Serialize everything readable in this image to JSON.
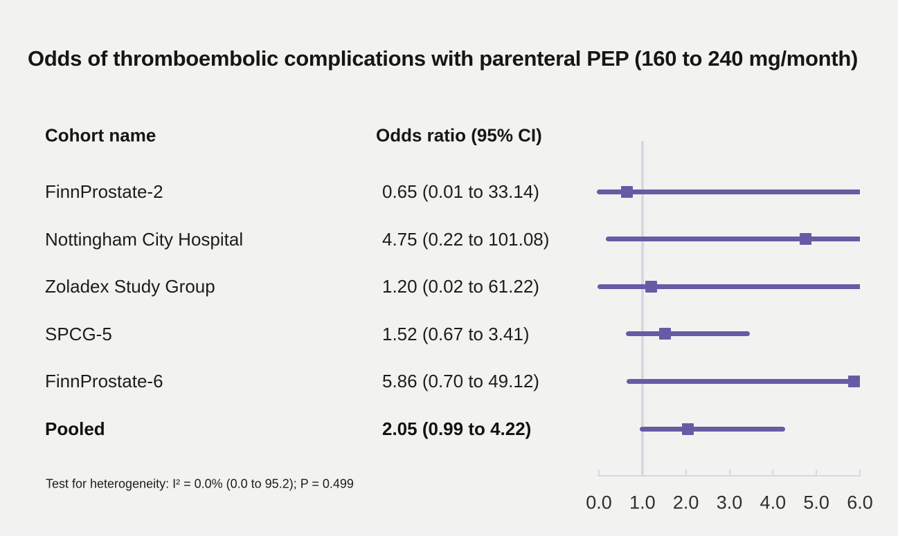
{
  "figure": {
    "title": "Odds of thromboembolic complications with parenteral PEP (160 to 240 mg/month)"
  },
  "table": {
    "col1_header": "Cohort name",
    "col2_header": "Odds ratio (95% CI)"
  },
  "footer": {
    "heterogeneity": "Test for heterogeneity: I² = 0.0% (0.0 to 95.2); P = 0.499"
  },
  "chart_data": {
    "type": "forest",
    "title": "Odds of thromboembolic complications with parenteral PEP (160 to 240 mg/month)",
    "xlabel": "",
    "ylabel": "",
    "axis": {
      "min": 0.0,
      "max": 6.0,
      "tick_values": [
        0.0,
        1.0,
        2.0,
        3.0,
        4.0,
        5.0,
        6.0
      ],
      "ticks": [
        "0.0",
        "1.0",
        "2.0",
        "3.0",
        "4.0",
        "5.0",
        "6.0"
      ],
      "reference_line": 1.0
    },
    "rows": [
      {
        "cohort": "FinnProstate-2",
        "label": "0.65 (0.01 to 33.14)",
        "or": 0.65,
        "lo": 0.01,
        "hi": 33.14,
        "bold": false
      },
      {
        "cohort": "Nottingham City Hospital",
        "label": "4.75 (0.22 to 101.08)",
        "or": 4.75,
        "lo": 0.22,
        "hi": 101.08,
        "bold": false
      },
      {
        "cohort": "Zoladex Study Group",
        "label": "1.20 (0.02 to 61.22)",
        "or": 1.2,
        "lo": 0.02,
        "hi": 61.22,
        "bold": false
      },
      {
        "cohort": "SPCG-5",
        "label": "1.52 (0.67 to 3.41)",
        "or": 1.52,
        "lo": 0.67,
        "hi": 3.41,
        "bold": false
      },
      {
        "cohort": "FinnProstate-6",
        "label": "5.86 (0.70 to 49.12)",
        "or": 5.86,
        "lo": 0.7,
        "hi": 49.12,
        "bold": false
      },
      {
        "cohort": "Pooled",
        "label": "2.05 (0.99 to 4.22)",
        "or": 2.05,
        "lo": 0.99,
        "hi": 4.22,
        "bold": true
      }
    ],
    "colors": {
      "marker": "#695aa5",
      "grid": "#d6d9e1",
      "background": "#f2f2f1",
      "text": "#1c1c1b"
    }
  }
}
